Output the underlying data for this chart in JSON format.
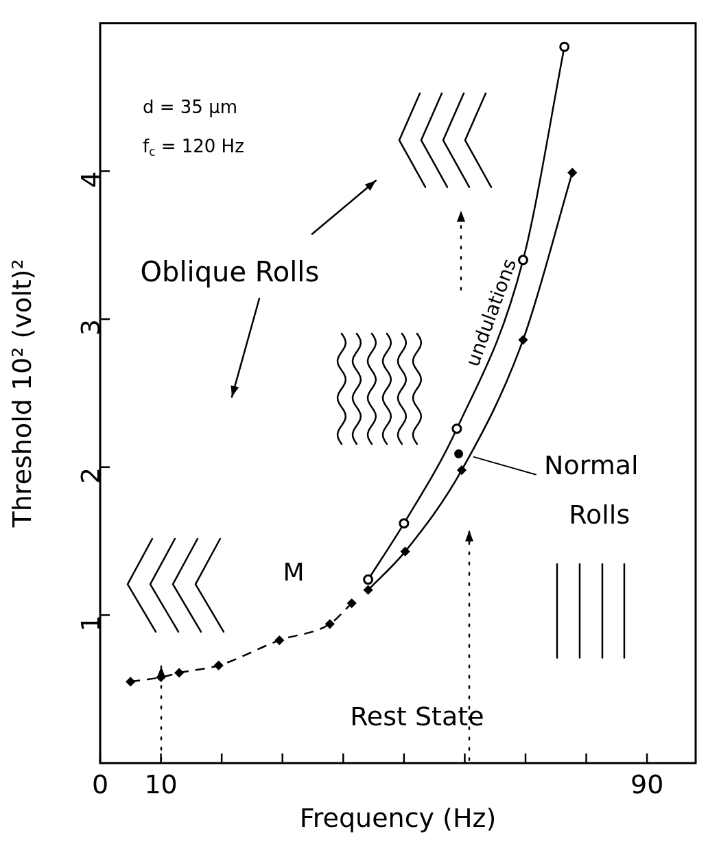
{
  "chart_data": {
    "type": "line",
    "xlabel": "Frequency (Hz)",
    "ylabel": "Threshold 10² (volt)²",
    "xlim": [
      0,
      98
    ],
    "xticks": [
      0,
      10,
      {
        "value": 20,
        "label": null
      },
      {
        "value": 30,
        "label": null
      },
      {
        "value": 40,
        "label": null
      },
      {
        "value": 50,
        "label": null
      },
      {
        "value": 60,
        "label": null
      },
      {
        "value": 70,
        "label": null
      },
      {
        "value": 80,
        "label": null
      },
      90
    ],
    "ylim": [
      0,
      5
    ],
    "yticks": [
      1,
      2,
      3,
      4
    ],
    "legend": false,
    "series": [
      {
        "color": "#000000",
        "marker": "circle",
        "line_style": "solid",
        "x": [
          44.1,
          50.0,
          58.7,
          69.6,
          76.4
        ],
        "values": [
          1.24,
          1.62,
          2.26,
          3.4,
          4.84
        ]
      },
      {
        "color": "#000000",
        "marker": "diamond",
        "line_style": "solid",
        "x": [
          44.1,
          50.2,
          59.5,
          69.6,
          77.7
        ],
        "values": [
          1.17,
          1.43,
          1.98,
          2.86,
          3.99
        ]
      },
      {
        "color": "#000000",
        "marker": "diamond",
        "line_style": "dashed",
        "x": [
          5,
          10,
          13,
          19.5,
          29.5,
          37.8,
          41.4
        ],
        "values": [
          0.55,
          0.58,
          0.61,
          0.66,
          0.83,
          0.94,
          1.08
        ]
      },
      {
        "type": "scatter",
        "color": "#000000",
        "marker": "circle",
        "x": [
          59.0
        ],
        "values": [
          2.09
        ]
      }
    ],
    "annotations": [
      "d = 35 μm",
      "f$_{c}$ = 120 Hz",
      "Oblique Rolls",
      "undulations",
      "M",
      {
        "text": "Normal Rolls",
        "x": 61.4,
        "y": 2.07
      },
      "Rest State"
    ]
  }
}
